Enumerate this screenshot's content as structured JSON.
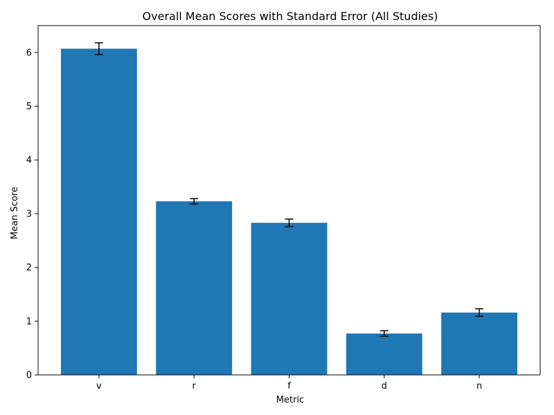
{
  "chart_data": {
    "type": "bar",
    "title": "Overall Mean Scores with Standard Error (All Studies)",
    "xlabel": "Metric",
    "ylabel": "Mean Score",
    "categories": [
      "v",
      "r",
      "f",
      "d",
      "n"
    ],
    "values": [
      6.07,
      3.23,
      2.83,
      0.77,
      1.16
    ],
    "errors": [
      0.11,
      0.05,
      0.07,
      0.05,
      0.07
    ],
    "ylim": [
      0,
      6.5
    ],
    "yticks": [
      0,
      1,
      2,
      3,
      4,
      5,
      6
    ],
    "grid": false,
    "bar_color": "#1f77b4",
    "error_color": "#000000"
  }
}
